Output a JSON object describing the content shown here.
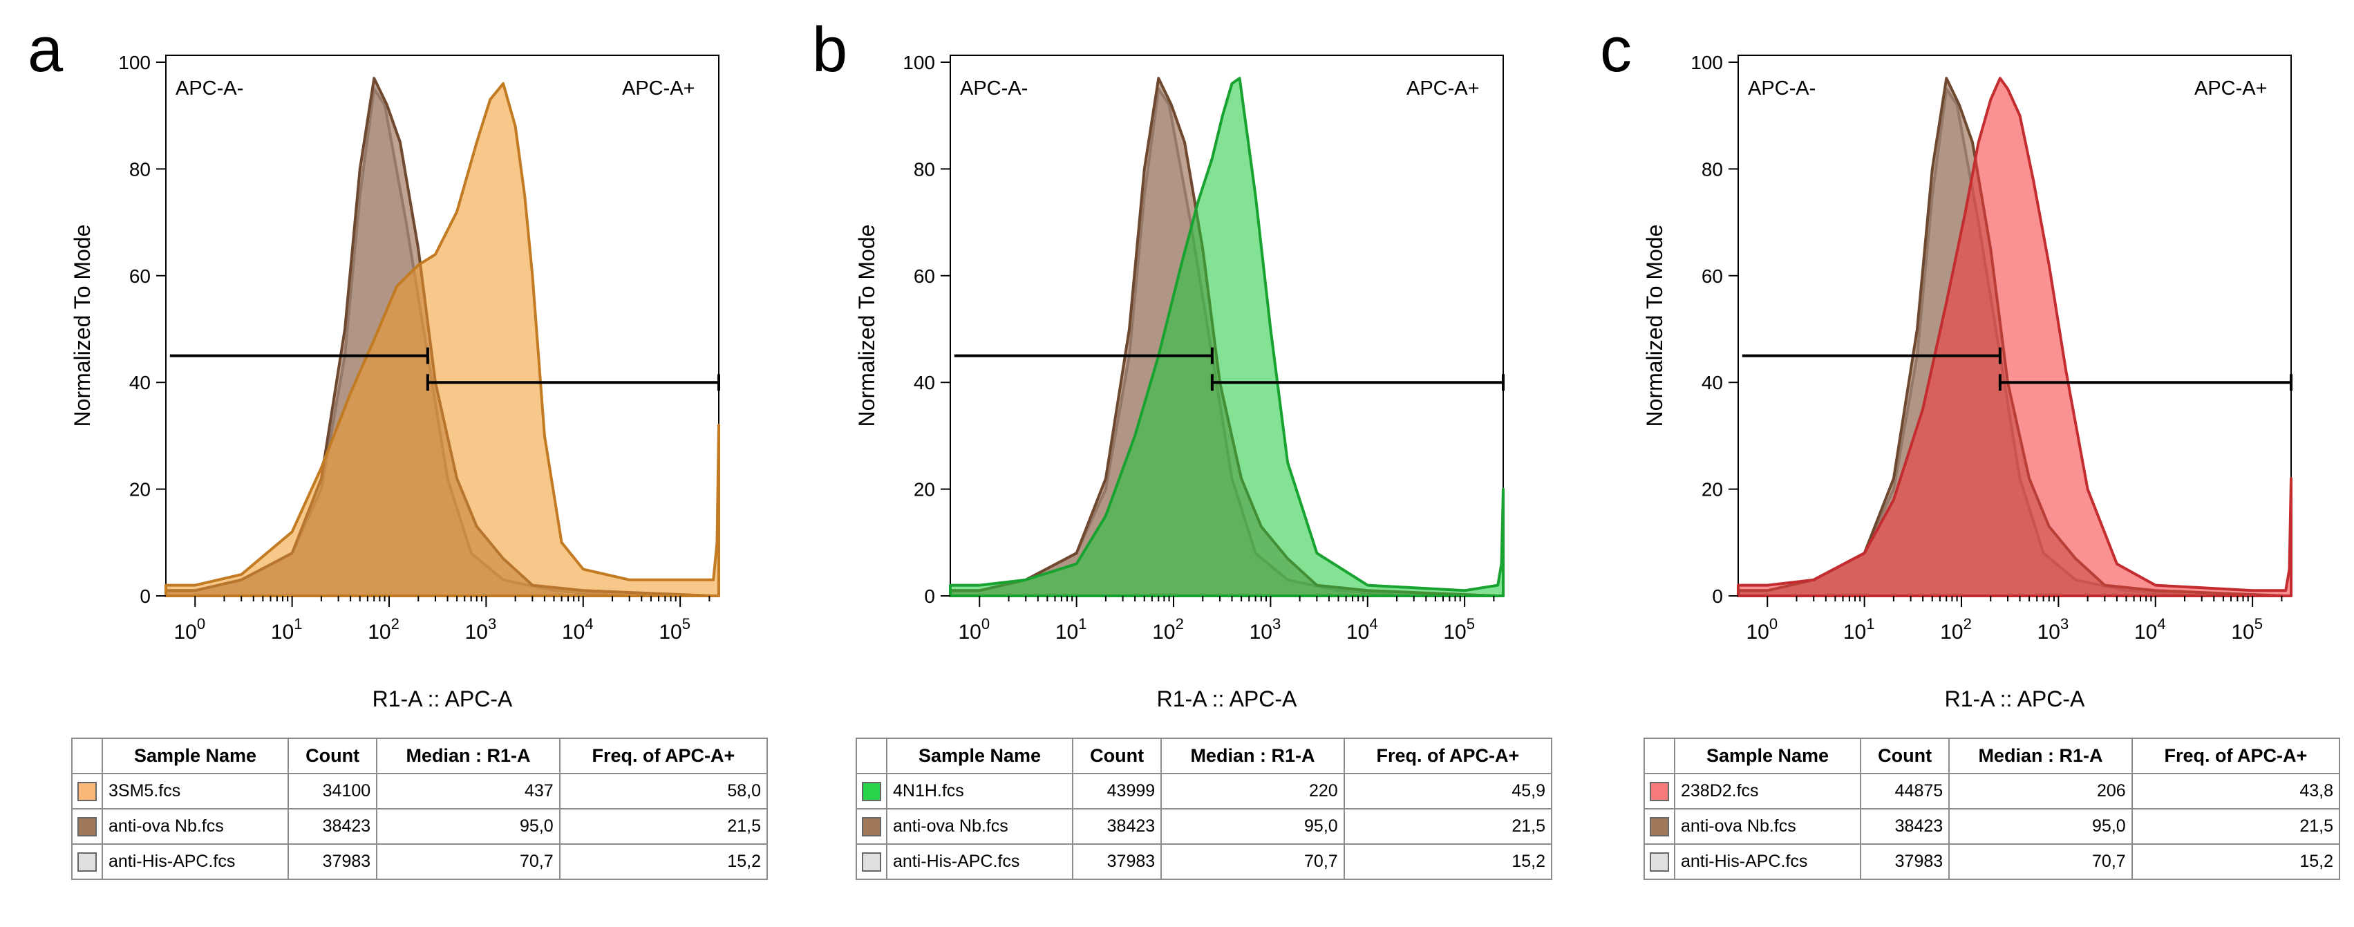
{
  "chart_data": [
    {
      "panel_label": "a",
      "type": "area",
      "xlabel": "R1-A :: APC-A",
      "ylabel": "Normalized To Mode",
      "x_scale": "log",
      "x_tick_labels": [
        "10^0",
        "10^1",
        "10^2",
        "10^3",
        "10^4",
        "10^5"
      ],
      "y_tick_labels": [
        "0",
        "20",
        "40",
        "60",
        "80",
        "100"
      ],
      "ylim": [
        0,
        100
      ],
      "gates": [
        {
          "name": "APC-A-",
          "x_start": 0.55,
          "x_end": 250,
          "y": 45
        },
        {
          "name": "APC-A+",
          "x_start": 250,
          "x_end": 250000,
          "y": 40
        }
      ],
      "series": [
        {
          "name": "anti-His-APC.fcs",
          "color": "#c8c8c8",
          "peak": 70.7,
          "x": [
            0.5,
            1,
            3,
            10,
            20,
            35,
            50,
            70,
            90,
            150,
            250,
            400,
            700,
            1500,
            5000,
            30000,
            220000,
            250000
          ],
          "y": [
            1,
            1,
            3,
            8,
            20,
            45,
            75,
            95,
            92,
            70,
            45,
            22,
            8,
            3,
            1,
            0,
            0,
            0
          ]
        },
        {
          "name": "anti-ova Nb.fcs",
          "color": "#8b5a3c",
          "peak": 95.0,
          "x": [
            0.5,
            1,
            3,
            10,
            20,
            35,
            50,
            70,
            95,
            130,
            200,
            300,
            500,
            800,
            1500,
            3000,
            10000,
            220000,
            250000
          ],
          "y": [
            1,
            1,
            3,
            8,
            22,
            50,
            80,
            97,
            92,
            85,
            65,
            40,
            22,
            13,
            7,
            2,
            1,
            0,
            0
          ]
        },
        {
          "name": "3SM5.fcs",
          "color": "#f39a2c",
          "peak": 437,
          "x": [
            0.5,
            1,
            3,
            10,
            20,
            40,
            70,
            120,
            200,
            300,
            500,
            800,
            1100,
            1500,
            2000,
            2500,
            3000,
            4000,
            6000,
            10000,
            30000,
            100000,
            220000,
            240000,
            250000
          ],
          "y": [
            2,
            2,
            4,
            12,
            24,
            38,
            48,
            58,
            62,
            64,
            72,
            85,
            93,
            96,
            88,
            75,
            60,
            30,
            10,
            5,
            3,
            3,
            3,
            10,
            32
          ]
        }
      ]
    },
    {
      "panel_label": "b",
      "type": "area",
      "xlabel": "R1-A :: APC-A",
      "ylabel": "Normalized To Mode",
      "x_scale": "log",
      "x_tick_labels": [
        "10^0",
        "10^1",
        "10^2",
        "10^3",
        "10^4",
        "10^5"
      ],
      "y_tick_labels": [
        "0",
        "20",
        "40",
        "60",
        "80",
        "100"
      ],
      "ylim": [
        0,
        100
      ],
      "gates": [
        {
          "name": "APC-A-",
          "x_start": 0.55,
          "x_end": 250,
          "y": 45
        },
        {
          "name": "APC-A+",
          "x_start": 250,
          "x_end": 250000,
          "y": 40
        }
      ],
      "series": [
        {
          "name": "anti-His-APC.fcs",
          "color": "#c8c8c8",
          "peak": 70.7,
          "x": [
            0.5,
            1,
            3,
            10,
            20,
            35,
            50,
            70,
            90,
            150,
            250,
            400,
            700,
            1500,
            5000,
            30000,
            220000,
            250000
          ],
          "y": [
            1,
            1,
            3,
            8,
            20,
            45,
            75,
            95,
            92,
            70,
            45,
            22,
            8,
            3,
            1,
            0,
            0,
            0
          ]
        },
        {
          "name": "anti-ova Nb.fcs",
          "color": "#8b5a3c",
          "peak": 95.0,
          "x": [
            0.5,
            1,
            3,
            10,
            20,
            35,
            50,
            70,
            95,
            130,
            200,
            300,
            500,
            800,
            1500,
            3000,
            10000,
            220000,
            250000
          ],
          "y": [
            1,
            1,
            3,
            8,
            22,
            50,
            80,
            97,
            92,
            85,
            65,
            40,
            22,
            13,
            7,
            2,
            1,
            0,
            0
          ]
        },
        {
          "name": "4N1H.fcs",
          "color": "#1ecb3c",
          "peak": 220,
          "x": [
            0.5,
            1,
            3,
            10,
            20,
            40,
            70,
            120,
            180,
            250,
            320,
            400,
            480,
            560,
            700,
            1000,
            1500,
            3000,
            10000,
            100000,
            220000,
            240000,
            250000
          ],
          "y": [
            2,
            2,
            3,
            6,
            15,
            30,
            45,
            62,
            74,
            82,
            90,
            96,
            97,
            88,
            75,
            50,
            25,
            8,
            2,
            1,
            2,
            6,
            20
          ]
        }
      ]
    },
    {
      "panel_label": "c",
      "type": "area",
      "xlabel": "R1-A :: APC-A",
      "ylabel": "Normalized To Mode",
      "x_scale": "log",
      "x_tick_labels": [
        "10^0",
        "10^1",
        "10^2",
        "10^3",
        "10^4",
        "10^5"
      ],
      "y_tick_labels": [
        "0",
        "20",
        "40",
        "60",
        "80",
        "100"
      ],
      "ylim": [
        0,
        100
      ],
      "gates": [
        {
          "name": "APC-A-",
          "x_start": 0.55,
          "x_end": 250,
          "y": 45
        },
        {
          "name": "APC-A+",
          "x_start": 250,
          "x_end": 250000,
          "y": 40
        }
      ],
      "series": [
        {
          "name": "anti-His-APC.fcs",
          "color": "#c8c8c8",
          "peak": 70.7,
          "x": [
            0.5,
            1,
            3,
            10,
            20,
            35,
            50,
            70,
            90,
            150,
            250,
            400,
            700,
            1500,
            5000,
            30000,
            220000,
            250000
          ],
          "y": [
            1,
            1,
            3,
            8,
            20,
            45,
            75,
            95,
            92,
            70,
            45,
            22,
            8,
            3,
            1,
            0,
            0,
            0
          ]
        },
        {
          "name": "anti-ova Nb.fcs",
          "color": "#8b5a3c",
          "peak": 95.0,
          "x": [
            0.5,
            1,
            3,
            10,
            20,
            35,
            50,
            70,
            95,
            130,
            200,
            300,
            500,
            800,
            1500,
            3000,
            10000,
            220000,
            250000
          ],
          "y": [
            1,
            1,
            3,
            8,
            22,
            50,
            80,
            97,
            92,
            85,
            65,
            40,
            22,
            13,
            7,
            2,
            1,
            0,
            0
          ]
        },
        {
          "name": "238D2.fcs",
          "color": "#f5383c",
          "peak": 206,
          "x": [
            0.5,
            1,
            3,
            10,
            20,
            40,
            70,
            110,
            150,
            200,
            250,
            300,
            400,
            550,
            800,
            1200,
            2000,
            4000,
            10000,
            100000,
            220000,
            240000,
            250000
          ],
          "y": [
            2,
            2,
            3,
            8,
            18,
            35,
            55,
            72,
            85,
            93,
            97,
            95,
            90,
            78,
            62,
            42,
            20,
            6,
            2,
            1,
            1,
            5,
            22
          ]
        }
      ]
    }
  ],
  "tables": [
    {
      "headers": [
        "Sample Name",
        "Count",
        "Median : R1-A",
        "Freq. of APC-A+"
      ],
      "rows": [
        {
          "swatch": "#f9b878",
          "name": "3SM5.fcs",
          "count": "34100",
          "median": "437",
          "freq": "58,0"
        },
        {
          "swatch": "#a0785a",
          "name": "anti-ova Nb.fcs",
          "count": "38423",
          "median": "95,0",
          "freq": "21,5"
        },
        {
          "swatch": "#e0e0e0",
          "name": "anti-His-APC.fcs",
          "count": "37983",
          "median": "70,7",
          "freq": "15,2"
        }
      ]
    },
    {
      "headers": [
        "Sample Name",
        "Count",
        "Median : R1-A",
        "Freq. of APC-A+"
      ],
      "rows": [
        {
          "swatch": "#2ad44a",
          "name": "4N1H.fcs",
          "count": "43999",
          "median": "220",
          "freq": "45,9"
        },
        {
          "swatch": "#a0785a",
          "name": "anti-ova Nb.fcs",
          "count": "38423",
          "median": "95,0",
          "freq": "21,5"
        },
        {
          "swatch": "#e0e0e0",
          "name": "anti-His-APC.fcs",
          "count": "37983",
          "median": "70,7",
          "freq": "15,2"
        }
      ]
    },
    {
      "headers": [
        "Sample Name",
        "Count",
        "Median : R1-A",
        "Freq. of APC-A+"
      ],
      "rows": [
        {
          "swatch": "#f77a7a",
          "name": "238D2.fcs",
          "count": "44875",
          "median": "206",
          "freq": "43,8"
        },
        {
          "swatch": "#a0785a",
          "name": "anti-ova Nb.fcs",
          "count": "38423",
          "median": "95,0",
          "freq": "21,5"
        },
        {
          "swatch": "#e0e0e0",
          "name": "anti-His-APC.fcs",
          "count": "37983",
          "median": "70,7",
          "freq": "15,2"
        }
      ]
    }
  ]
}
